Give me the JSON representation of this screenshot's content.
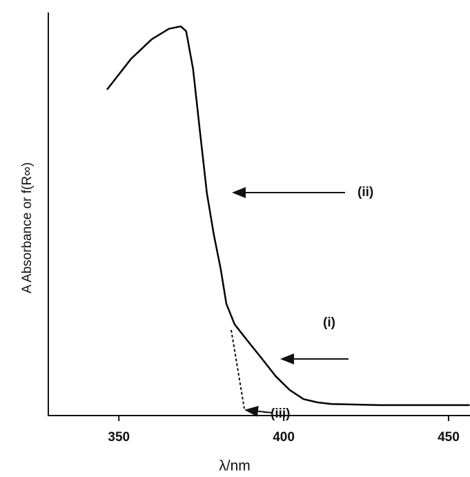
{
  "chart_data": {
    "type": "line",
    "xlabel": "λ/nm",
    "ylabel": "A Absorbance or f(R∞)",
    "x": [
      346.4,
      353.7,
      360.0,
      365.2,
      368.8,
      370.4,
      372.5,
      374.6,
      376.7,
      378.8,
      380.9,
      382.6,
      385.1,
      389.3,
      393.5,
      397.6,
      401.8,
      406.0,
      410.2,
      414.4,
      429.0,
      456.4
    ],
    "values": [
      81.4,
      89.1,
      94.0,
      96.6,
      97.2,
      96.0,
      86.6,
      71.0,
      55.5,
      45.2,
      36.6,
      27.9,
      22.8,
      18.4,
      14.1,
      9.8,
      6.4,
      4.1,
      3.3,
      2.9,
      2.6,
      2.6
    ],
    "color": "#000000",
    "xlim": [
      328.6,
      456.5
    ],
    "xticks": [
      350,
      400,
      450
    ],
    "ylim": [
      0,
      100
    ],
    "grid": false,
    "annotations": [
      "(ii)",
      "(i)",
      "(iii)"
    ]
  }
}
